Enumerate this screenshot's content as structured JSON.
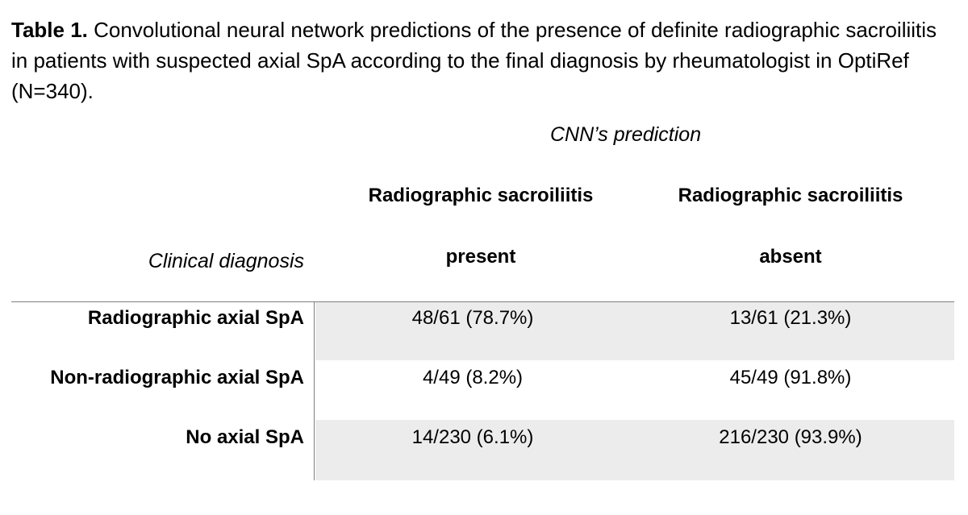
{
  "caption": {
    "label": "Table 1.",
    "text": " Convolutional neural network predictions of the presence of definite radiographic sacroiliitis in patients with suspected axial SpA according to the final diagnosis by rheumatologist in OptiRef (N=340)."
  },
  "table": {
    "spanning_header": "CNN’s prediction",
    "row_header_label": "Clinical diagnosis",
    "columns": [
      {
        "line1": "Radiographic sacroiliitis",
        "line2": "present"
      },
      {
        "line1": "Radiographic sacroiliitis",
        "line2": "absent"
      }
    ],
    "rows": [
      {
        "label": "Radiographic axial SpA",
        "present": "48/61 (78.7%)",
        "absent": "13/61 (21.3%)"
      },
      {
        "label": "Non-radiographic axial SpA",
        "present": "4/49 (8.2%)",
        "absent": "45/49 (91.8%)"
      },
      {
        "label": "No axial SpA",
        "present": "14/230 (6.1%)",
        "absent": "216/230 (93.9%)"
      }
    ]
  },
  "colors": {
    "shaded_row": "#ececec",
    "rule": "#7f7f7f"
  }
}
